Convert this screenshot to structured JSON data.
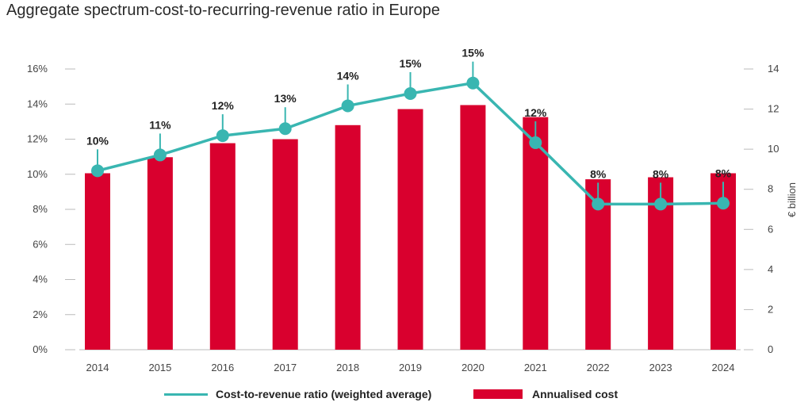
{
  "colors": {
    "bar": "#D9002E",
    "line": "#39B6B1",
    "axis": "#BBBBBB",
    "text": "#444444"
  },
  "chart_data": {
    "type": "bar+line",
    "title": "Aggregate spectrum-cost-to-recurring-revenue ratio in Europe",
    "categories": [
      "2014",
      "2015",
      "2016",
      "2017",
      "2018",
      "2019",
      "2020",
      "2021",
      "2022",
      "2023",
      "2024"
    ],
    "series": [
      {
        "name": "Annualised cost",
        "type": "bar",
        "axis": "right",
        "values": [
          8.8,
          9.6,
          10.3,
          10.5,
          11.2,
          12.0,
          12.2,
          11.6,
          8.5,
          8.6,
          8.8
        ]
      },
      {
        "name": "Cost-to-revenue ratio (weighted average)",
        "type": "line",
        "axis": "left",
        "values": [
          10.2,
          11.1,
          12.2,
          12.6,
          13.9,
          14.6,
          15.2,
          11.8,
          8.3,
          8.3,
          8.35
        ],
        "labels": [
          "10%",
          "11%",
          "12%",
          "13%",
          "14%",
          "15%",
          "15%",
          "12%",
          "8%",
          "8%",
          "8%"
        ]
      }
    ],
    "left_axis": {
      "ylim": [
        0,
        16
      ],
      "ticks": [
        0,
        2,
        4,
        6,
        8,
        10,
        12,
        14,
        16
      ],
      "tick_labels": [
        "0%",
        "2%",
        "4%",
        "6%",
        "8%",
        "10%",
        "12%",
        "14%",
        "16%"
      ]
    },
    "right_axis": {
      "ylim": [
        0,
        14
      ],
      "ticks": [
        0,
        2,
        4,
        6,
        8,
        10,
        12,
        14
      ],
      "tick_labels": [
        "0",
        "2",
        "4",
        "6",
        "8",
        "10",
        "12",
        "14"
      ],
      "label": "€ billion"
    },
    "legend": [
      {
        "name": "Cost-to-revenue ratio (weighted average)",
        "marker": "line"
      },
      {
        "name": "Annualised cost",
        "marker": "rect"
      }
    ]
  }
}
